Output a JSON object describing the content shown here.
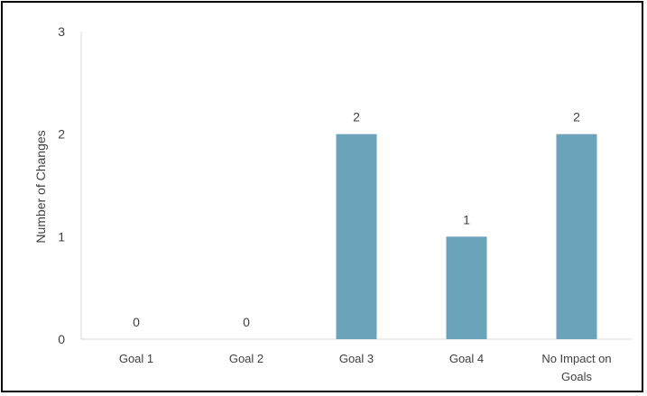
{
  "chart_data": {
    "type": "bar",
    "categories": [
      "Goal 1",
      "Goal 2",
      "Goal 3",
      "Goal 4",
      "No Impact on Goals"
    ],
    "category_lines": [
      [
        "Goal 1"
      ],
      [
        "Goal 2"
      ],
      [
        "Goal 3"
      ],
      [
        "Goal 4"
      ],
      [
        "No Impact on",
        "Goals"
      ]
    ],
    "values": [
      0,
      0,
      2,
      1,
      2
    ],
    "data_labels": [
      "0",
      "0",
      "2",
      "1",
      "2"
    ],
    "title": "",
    "xlabel": "",
    "ylabel": "Number of Changes",
    "ylim": [
      0,
      3
    ],
    "yticks": [
      0,
      1,
      2,
      3
    ],
    "ytick_labels": [
      "0",
      "1",
      "2",
      "3"
    ],
    "grid": false,
    "legend": "none",
    "bar_color": "#6aa3ba"
  }
}
